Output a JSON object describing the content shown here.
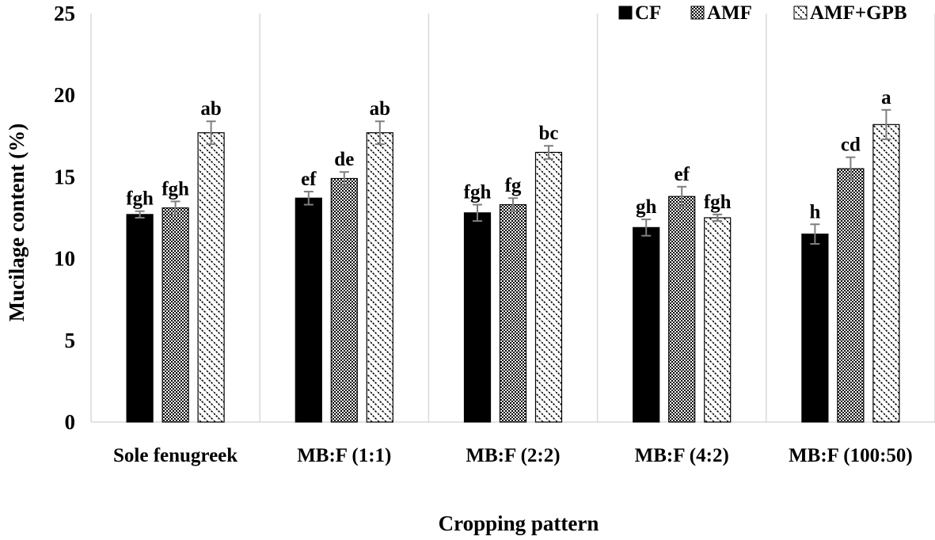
{
  "chart_data": {
    "type": "bar",
    "title": "",
    "xlabel": "Cropping pattern",
    "ylabel": "Mucilage content (%)",
    "ylim": [
      0,
      25
    ],
    "yticks": [
      0,
      5,
      10,
      15,
      20,
      25
    ],
    "categories": [
      "Sole fenugreek",
      "MB:F (1:1)",
      "MB:F (2:2)",
      "MB:F (4:2)",
      "MB:F (100:50)"
    ],
    "legend_position": "top-right",
    "series": [
      {
        "name": "CF",
        "pattern": "solid",
        "values": [
          12.7,
          13.7,
          12.8,
          11.9,
          11.5
        ],
        "errors": [
          0.2,
          0.4,
          0.5,
          0.5,
          0.6
        ],
        "labels": [
          "fgh",
          "ef",
          "fgh",
          "gh",
          "h"
        ]
      },
      {
        "name": "AMF",
        "pattern": "checker",
        "values": [
          13.1,
          14.9,
          13.3,
          13.8,
          15.5
        ],
        "errors": [
          0.4,
          0.4,
          0.4,
          0.6,
          0.7
        ],
        "labels": [
          "fgh",
          "de",
          "fg",
          "ef",
          "cd"
        ]
      },
      {
        "name": "AMF+GPB",
        "pattern": "diagonal",
        "values": [
          17.7,
          17.7,
          16.5,
          12.5,
          18.2
        ],
        "errors": [
          0.7,
          0.7,
          0.4,
          0.2,
          0.9
        ],
        "labels": [
          "ab",
          "ab",
          "bc",
          "fgh",
          "a"
        ]
      }
    ]
  }
}
